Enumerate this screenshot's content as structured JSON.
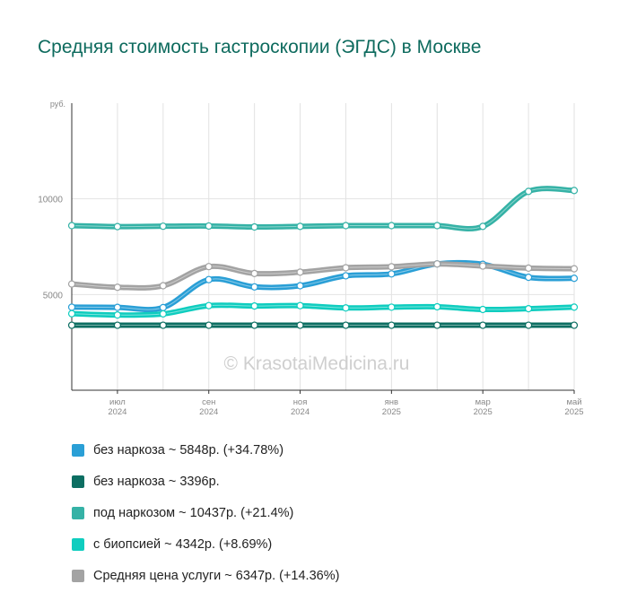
{
  "title": "Средняя стоимость гастроскопии (ЭГДС) в Москве",
  "watermark": "© KrasotaiMedicina.ru",
  "chart_data": {
    "type": "line",
    "unit_label": "руб.",
    "ylim": [
      0,
      15000
    ],
    "yticks": [
      5000,
      10000
    ],
    "x_count": 12,
    "x_ticks": [
      {
        "index": 1,
        "month": "июл",
        "year": "2024"
      },
      {
        "index": 3,
        "month": "сен",
        "year": "2024"
      },
      {
        "index": 5,
        "month": "ноя",
        "year": "2024"
      },
      {
        "index": 7,
        "month": "янв",
        "year": "2025"
      },
      {
        "index": 9,
        "month": "мар",
        "year": "2025"
      },
      {
        "index": 11,
        "month": "май",
        "year": "2025"
      }
    ],
    "grid": true,
    "series": [
      {
        "name": "без наркоза ~ 5848р. (+34.78%)",
        "color": "#2a9fd6",
        "values": [
          4340,
          4330,
          4320,
          5780,
          5400,
          5460,
          5980,
          6080,
          6600,
          6580,
          5900,
          5848
        ]
      },
      {
        "name": "без наркоза ~ 3396р.",
        "color": "#0c6e62",
        "values": [
          3396,
          3396,
          3396,
          3396,
          3396,
          3396,
          3396,
          3396,
          3396,
          3396,
          3396,
          3396
        ]
      },
      {
        "name": "под наркозом ~ 10437р. (+21.4%)",
        "color": "#35b2a6",
        "values": [
          8600,
          8550,
          8570,
          8580,
          8530,
          8560,
          8600,
          8600,
          8600,
          8560,
          10390,
          10437
        ]
      },
      {
        "name": "с биопсией ~ 4342р. (+8.69%)",
        "color": "#0fcdbf",
        "values": [
          4000,
          3930,
          3990,
          4420,
          4400,
          4420,
          4300,
          4340,
          4360,
          4220,
          4260,
          4342
        ]
      },
      {
        "name": "Средняя цена услуги ~ 6347р. (+14.36%)",
        "color": "#a3a3a3",
        "values": [
          5550,
          5380,
          5460,
          6460,
          6100,
          6170,
          6400,
          6450,
          6600,
          6490,
          6380,
          6347
        ]
      }
    ]
  }
}
